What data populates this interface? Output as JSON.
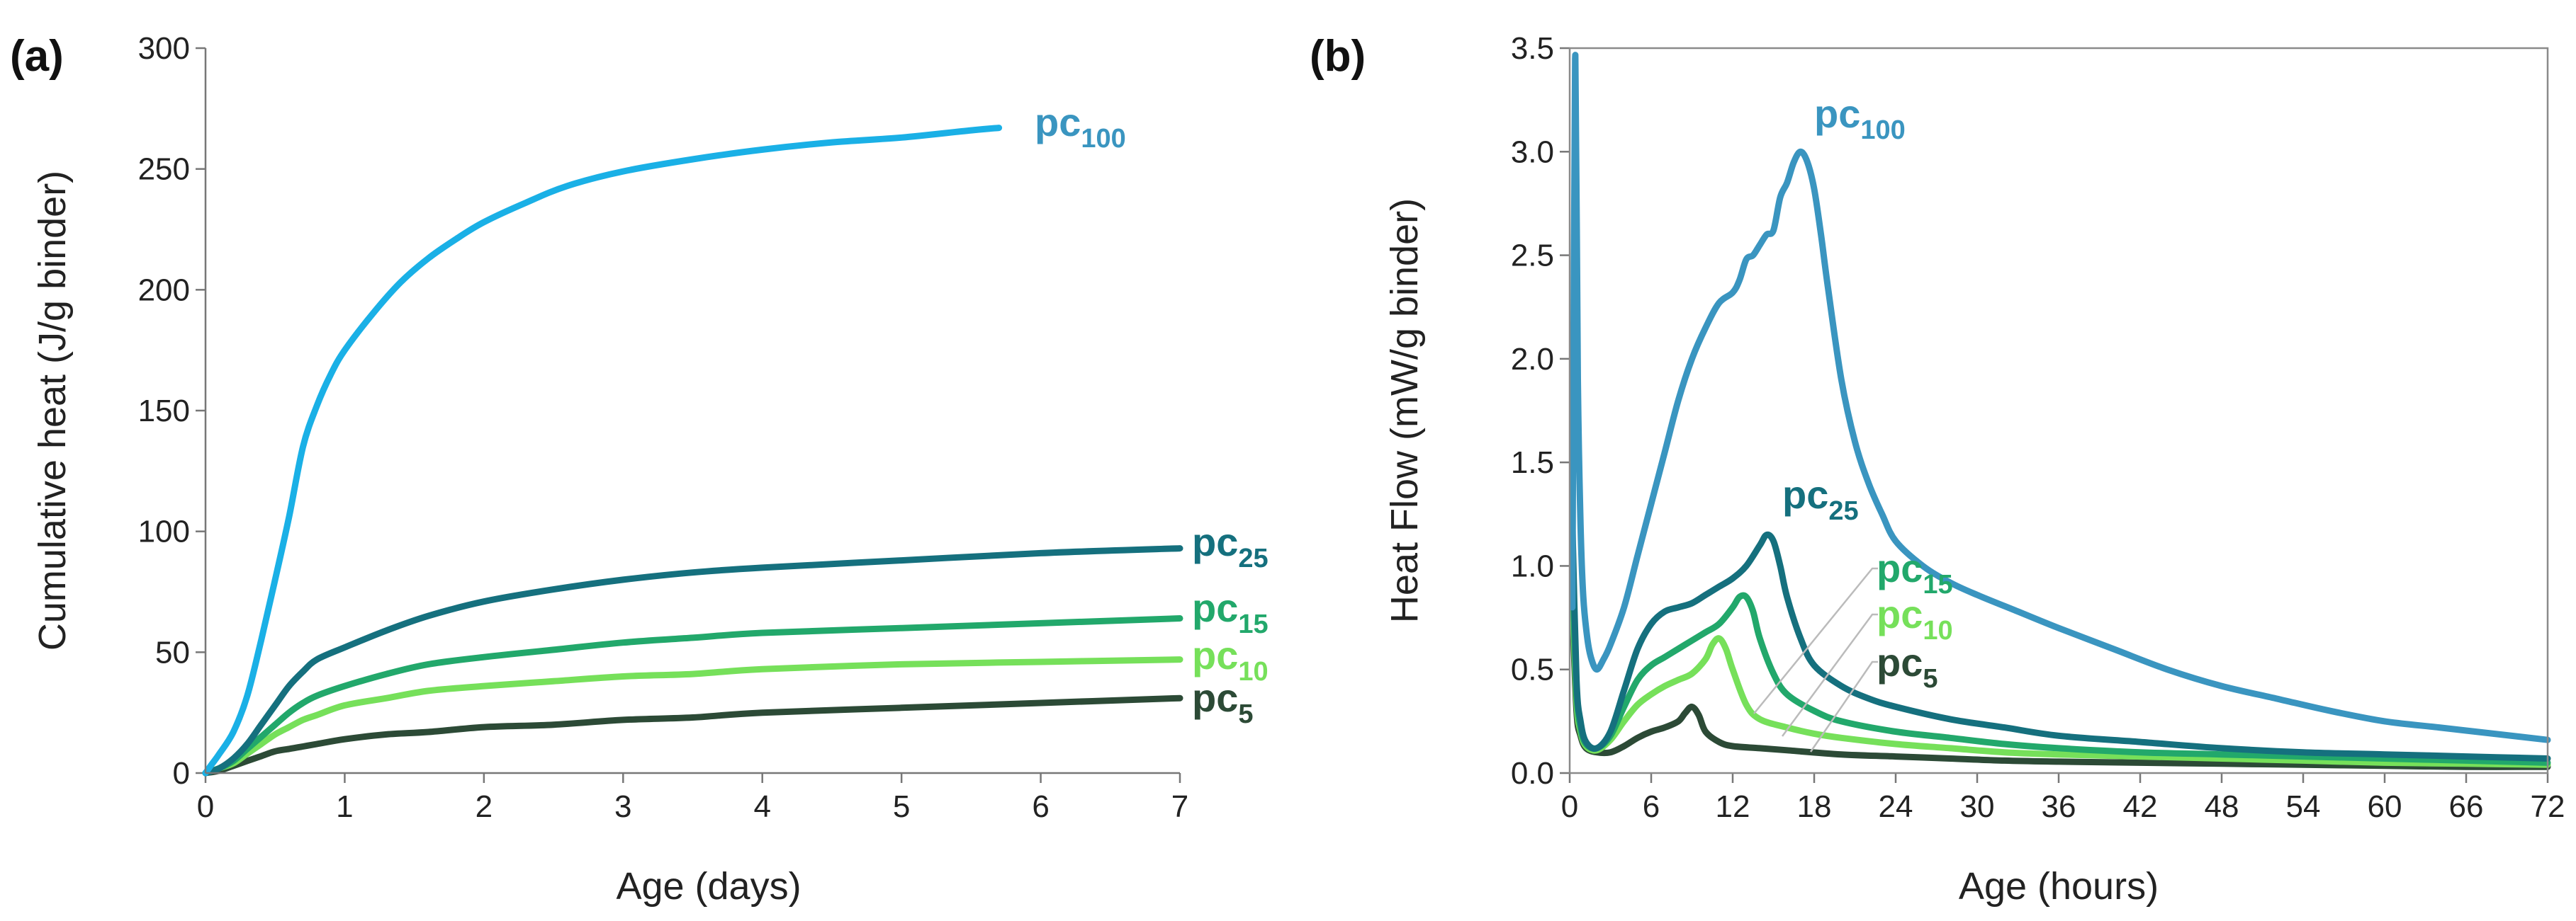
{
  "chart_data": [
    {
      "panel": "(a)",
      "type": "line",
      "title": "",
      "xlabel": "Age (days)",
      "ylabel": "Cumulative heat (J/g binder)",
      "xlim": [
        0,
        7
      ],
      "ylim": [
        0,
        300
      ],
      "xticks": [
        0,
        1,
        2,
        3,
        4,
        5,
        6,
        7
      ],
      "yticks": [
        0,
        50,
        100,
        150,
        200,
        250,
        300
      ],
      "grid": false,
      "series": [
        {
          "name": "pc100",
          "label_main": "pc",
          "label_sub": "100",
          "color": "#1ab0e6",
          "x": [
            0,
            0.05,
            0.1,
            0.2,
            0.3,
            0.4,
            0.5,
            0.6,
            0.7,
            0.8,
            0.9,
            1.0,
            1.2,
            1.4,
            1.6,
            1.8,
            2.0,
            2.3,
            2.6,
            3.0,
            3.5,
            4.0,
            4.5,
            5.0,
            5.5,
            5.7
          ],
          "y": [
            0,
            4,
            8,
            17,
            32,
            55,
            80,
            106,
            135,
            152,
            165,
            175,
            190,
            203,
            213,
            221,
            228,
            236,
            243,
            249,
            254,
            258,
            261,
            263,
            266,
            267
          ]
        },
        {
          "name": "pc25",
          "label_main": "pc",
          "label_sub": "25",
          "color": "#15707e",
          "x": [
            0,
            0.1,
            0.2,
            0.3,
            0.4,
            0.5,
            0.6,
            0.7,
            0.8,
            1.0,
            1.3,
            1.6,
            2.0,
            2.5,
            3.0,
            3.5,
            4.0,
            5.0,
            6.0,
            7.0
          ],
          "y": [
            0,
            2,
            6,
            12,
            20,
            28,
            36,
            42,
            47,
            52,
            59,
            65,
            71,
            76,
            80,
            83,
            85,
            88,
            91,
            93
          ]
        },
        {
          "name": "pc15",
          "label_main": "pc",
          "label_sub": "15",
          "color": "#22a86b",
          "x": [
            0,
            0.1,
            0.2,
            0.3,
            0.4,
            0.5,
            0.6,
            0.7,
            0.8,
            1.0,
            1.3,
            1.6,
            2.0,
            2.5,
            3.0,
            3.5,
            4.0,
            5.0,
            6.0,
            7.0
          ],
          "y": [
            0,
            2,
            5,
            10,
            15,
            20,
            25,
            29,
            32,
            36,
            41,
            45,
            48,
            51,
            54,
            56,
            58,
            60,
            62,
            64
          ]
        },
        {
          "name": "pc10",
          "label_main": "pc",
          "label_sub": "10",
          "color": "#76e05a",
          "x": [
            0,
            0.1,
            0.2,
            0.3,
            0.4,
            0.5,
            0.6,
            0.7,
            0.8,
            1.0,
            1.3,
            1.6,
            2.0,
            2.5,
            3.0,
            3.5,
            4.0,
            5.0,
            6.0,
            7.0
          ],
          "y": [
            0,
            2,
            4,
            8,
            12,
            16,
            19,
            22,
            24,
            28,
            31,
            34,
            36,
            38,
            40,
            41,
            43,
            45,
            46,
            47
          ]
        },
        {
          "name": "pc5",
          "label_main": "pc",
          "label_sub": "5",
          "color": "#2c4a36",
          "x": [
            0,
            0.1,
            0.2,
            0.3,
            0.4,
            0.5,
            0.6,
            0.7,
            0.8,
            1.0,
            1.3,
            1.6,
            2.0,
            2.5,
            3.0,
            3.5,
            4.0,
            5.0,
            6.0,
            7.0
          ],
          "y": [
            0,
            1,
            3,
            5,
            7,
            9,
            10,
            11,
            12,
            14,
            16,
            17,
            19,
            20,
            22,
            23,
            25,
            27,
            29,
            31
          ]
        }
      ]
    },
    {
      "panel": "(b)",
      "type": "line",
      "title": "",
      "xlabel": "Age (hours)",
      "ylabel": "Heat Flow (mW/g binder)",
      "xlim": [
        0,
        72
      ],
      "ylim": [
        0,
        3.5
      ],
      "xticks": [
        0,
        6,
        12,
        18,
        24,
        30,
        36,
        42,
        48,
        54,
        60,
        66,
        72
      ],
      "yticks": [
        "0.0",
        "0.5",
        "1.0",
        "1.5",
        "2.0",
        "2.5",
        "3.0",
        "3.5"
      ],
      "grid": false,
      "series": [
        {
          "name": "pc100",
          "label_main": "pc",
          "label_sub": "100",
          "color": "#3a95c0",
          "x": [
            0.2,
            0.4,
            0.6,
            0.8,
            1.0,
            1.3,
            1.6,
            2.0,
            2.5,
            3.0,
            4.0,
            5.0,
            6.0,
            7.0,
            8.0,
            9.0,
            10.0,
            11.0,
            12.0,
            12.5,
            13.0,
            13.5,
            14.0,
            14.5,
            15.0,
            15.5,
            16.0,
            16.5,
            17.0,
            17.5,
            18.0,
            18.5,
            19.0,
            20.0,
            21.0,
            22.0,
            23.0,
            24.0,
            26.0,
            28.0,
            30.0,
            33.0,
            36.0,
            40.0,
            44.0,
            48.0,
            52.0,
            56.0,
            60.0,
            64.0,
            68.0,
            72.0
          ],
          "y": [
            0.8,
            3.45,
            1.9,
            1.2,
            0.85,
            0.65,
            0.55,
            0.5,
            0.55,
            0.62,
            0.8,
            1.05,
            1.3,
            1.55,
            1.8,
            2.0,
            2.15,
            2.27,
            2.32,
            2.38,
            2.48,
            2.5,
            2.55,
            2.6,
            2.62,
            2.78,
            2.85,
            2.95,
            3.0,
            2.95,
            2.82,
            2.6,
            2.35,
            1.9,
            1.6,
            1.4,
            1.25,
            1.12,
            1.0,
            0.92,
            0.86,
            0.78,
            0.7,
            0.6,
            0.5,
            0.42,
            0.36,
            0.3,
            0.25,
            0.22,
            0.19,
            0.16
          ]
        },
        {
          "name": "pc25",
          "label_main": "pc",
          "label_sub": "25",
          "color": "#15707e",
          "x": [
            0.2,
            0.5,
            0.8,
            1.2,
            2.0,
            3.0,
            4.0,
            5.0,
            6.0,
            7.0,
            8.0,
            9.0,
            10.0,
            11.0,
            12.0,
            13.0,
            14.0,
            14.5,
            15.0,
            15.5,
            16.0,
            17.0,
            18.0,
            20.0,
            22.0,
            24.0,
            28.0,
            32.0,
            36.0,
            42.0,
            48.0,
            54.0,
            60.0,
            66.0,
            72.0
          ],
          "y": [
            1.2,
            0.45,
            0.25,
            0.15,
            0.12,
            0.2,
            0.4,
            0.6,
            0.72,
            0.78,
            0.8,
            0.82,
            0.86,
            0.9,
            0.94,
            1.0,
            1.1,
            1.15,
            1.12,
            1.0,
            0.85,
            0.65,
            0.52,
            0.42,
            0.36,
            0.32,
            0.26,
            0.22,
            0.18,
            0.15,
            0.12,
            0.1,
            0.09,
            0.08,
            0.07
          ]
        },
        {
          "name": "pc15",
          "label_main": "pc",
          "label_sub": "15",
          "color": "#22a86b",
          "x": [
            0.2,
            0.5,
            0.8,
            1.2,
            2.0,
            3.0,
            4.0,
            5.0,
            6.0,
            7.0,
            8.0,
            9.0,
            10.0,
            11.0,
            12.0,
            12.5,
            13.0,
            13.5,
            14.0,
            15.0,
            16.0,
            18.0,
            20.0,
            24.0,
            28.0,
            32.0,
            36.0,
            42.0,
            48.0,
            54.0,
            60.0,
            66.0,
            72.0
          ],
          "y": [
            1.0,
            0.4,
            0.22,
            0.14,
            0.12,
            0.18,
            0.32,
            0.45,
            0.52,
            0.56,
            0.6,
            0.64,
            0.68,
            0.72,
            0.8,
            0.85,
            0.85,
            0.78,
            0.65,
            0.48,
            0.38,
            0.3,
            0.25,
            0.2,
            0.17,
            0.14,
            0.12,
            0.1,
            0.09,
            0.08,
            0.07,
            0.06,
            0.05
          ]
        },
        {
          "name": "pc10",
          "label_main": "pc",
          "label_sub": "10",
          "color": "#76e05a",
          "x": [
            0.2,
            0.5,
            0.8,
            1.2,
            2.0,
            3.0,
            4.0,
            5.0,
            6.0,
            7.0,
            8.0,
            9.0,
            10.0,
            10.5,
            11.0,
            11.5,
            12.0,
            13.0,
            14.0,
            16.0,
            18.0,
            20.0,
            24.0,
            28.0,
            32.0,
            36.0,
            42.0,
            48.0,
            54.0,
            60.0,
            66.0,
            72.0
          ],
          "y": [
            0.9,
            0.35,
            0.2,
            0.13,
            0.11,
            0.16,
            0.25,
            0.33,
            0.38,
            0.42,
            0.45,
            0.48,
            0.55,
            0.62,
            0.65,
            0.6,
            0.5,
            0.33,
            0.26,
            0.22,
            0.19,
            0.17,
            0.14,
            0.12,
            0.1,
            0.09,
            0.08,
            0.07,
            0.06,
            0.05,
            0.045,
            0.04
          ]
        },
        {
          "name": "pc5",
          "label_main": "pc",
          "label_sub": "5",
          "color": "#2c4a36",
          "x": [
            0.2,
            0.5,
            0.8,
            1.2,
            2.0,
            3.0,
            4.0,
            5.0,
            6.0,
            7.0,
            8.0,
            8.5,
            9.0,
            9.5,
            10.0,
            11.0,
            12.0,
            14.0,
            16.0,
            20.0,
            24.0,
            28.0,
            32.0,
            36.0,
            42.0,
            48.0,
            54.0,
            60.0,
            66.0,
            72.0
          ],
          "y": [
            0.8,
            0.3,
            0.18,
            0.12,
            0.1,
            0.1,
            0.13,
            0.17,
            0.2,
            0.22,
            0.25,
            0.29,
            0.32,
            0.28,
            0.2,
            0.15,
            0.13,
            0.12,
            0.11,
            0.09,
            0.08,
            0.07,
            0.06,
            0.055,
            0.05,
            0.045,
            0.04,
            0.035,
            0.03,
            0.03
          ]
        }
      ]
    }
  ]
}
